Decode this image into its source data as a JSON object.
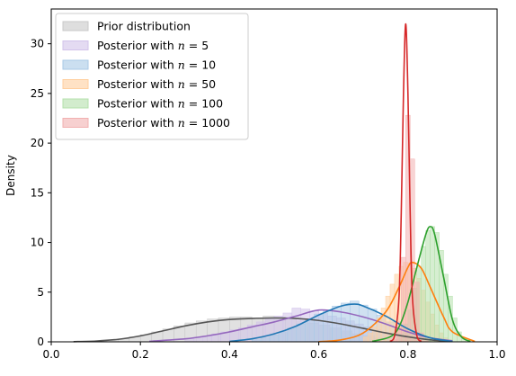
{
  "chart_data": {
    "type": "histogram-kde",
    "title": "",
    "xlabel": "",
    "ylabel": "Density",
    "xlim": [
      0.0,
      1.0
    ],
    "ylim": [
      0,
      33.5
    ],
    "xticks": [
      0.0,
      0.2,
      0.4,
      0.6,
      0.8,
      1.0
    ],
    "xtick_labels": [
      "0.0",
      "0.2",
      "0.4",
      "0.6",
      "0.8",
      "1.0"
    ],
    "yticks": [
      0,
      5,
      10,
      15,
      20,
      25,
      30
    ],
    "ytick_labels": [
      "0",
      "5",
      "10",
      "15",
      "20",
      "25",
      "30"
    ],
    "grid": false,
    "legend_position": "top-left",
    "series": [
      {
        "name": "Prior distribution",
        "legend_prefix": "Prior distribution",
        "legend_n": "",
        "fill": "#c8c8c8",
        "line": "#555555",
        "kde": {
          "x": [
            0.05,
            0.1,
            0.15,
            0.2,
            0.25,
            0.3,
            0.35,
            0.4,
            0.45,
            0.5,
            0.55,
            0.6,
            0.65,
            0.7,
            0.75,
            0.8,
            0.85,
            0.9
          ],
          "y": [
            0.02,
            0.08,
            0.25,
            0.6,
            1.1,
            1.6,
            2.0,
            2.25,
            2.35,
            2.4,
            2.35,
            2.15,
            1.8,
            1.35,
            0.9,
            0.5,
            0.2,
            0.05
          ]
        },
        "hist": {
          "start": 0.1,
          "width": 0.025,
          "values": [
            0.1,
            0.2,
            0.3,
            0.5,
            0.7,
            1.0,
            1.3,
            1.6,
            1.9,
            2.1,
            2.3,
            2.4,
            2.5,
            2.5,
            2.4,
            2.6,
            2.5,
            2.3,
            2.1,
            1.9,
            1.7,
            1.4,
            1.1,
            0.8,
            0.6,
            0.4,
            0.3,
            0.2,
            0.1,
            0.05
          ]
        }
      },
      {
        "name": "Posterior with n = 5",
        "legend_prefix": "Posterior with ",
        "legend_n": "5",
        "fill": "#d2c3ea",
        "line": "#9467bd",
        "kde": {
          "x": [
            0.22,
            0.3,
            0.35,
            0.4,
            0.45,
            0.5,
            0.55,
            0.6,
            0.65,
            0.7,
            0.75,
            0.8,
            0.85,
            0.9
          ],
          "y": [
            0.05,
            0.3,
            0.6,
            1.0,
            1.5,
            2.0,
            2.6,
            3.2,
            3.0,
            2.5,
            1.8,
            1.0,
            0.4,
            0.1
          ]
        },
        "hist": {
          "start": 0.3,
          "width": 0.02,
          "values": [
            0.3,
            0.4,
            0.6,
            0.8,
            1.0,
            1.2,
            1.4,
            1.7,
            2.0,
            2.3,
            2.6,
            2.9,
            3.4,
            3.3,
            3.1,
            2.9,
            2.6,
            2.4,
            2.1,
            1.8,
            1.5,
            1.2,
            0.9,
            0.6,
            0.4,
            0.2
          ]
        }
      },
      {
        "name": "Posterior with n = 10",
        "legend_prefix": "Posterior with ",
        "legend_n": "10",
        "fill": "#a9c9e6",
        "line": "#1f77b4",
        "kde": {
          "x": [
            0.4,
            0.45,
            0.5,
            0.55,
            0.6,
            0.65,
            0.68,
            0.7,
            0.75,
            0.8,
            0.85,
            0.9
          ],
          "y": [
            0.05,
            0.3,
            0.8,
            1.6,
            2.7,
            3.6,
            3.8,
            3.6,
            2.6,
            1.3,
            0.4,
            0.05
          ]
        },
        "hist": {
          "start": 0.45,
          "width": 0.02,
          "values": [
            0.2,
            0.4,
            0.7,
            1.0,
            1.4,
            1.8,
            2.3,
            2.8,
            3.2,
            3.6,
            3.9,
            4.1,
            3.7,
            3.3,
            2.7,
            2.0,
            1.4,
            0.9,
            0.5,
            0.2
          ]
        }
      },
      {
        "name": "Posterior with n = 50",
        "legend_prefix": "Posterior with ",
        "legend_n": "50",
        "fill": "#ffcf9f",
        "line": "#ff7f0e",
        "kde": {
          "x": [
            0.6,
            0.65,
            0.7,
            0.75,
            0.78,
            0.8,
            0.81,
            0.83,
            0.85,
            0.88,
            0.9,
            0.95
          ],
          "y": [
            0.02,
            0.2,
            0.9,
            3.0,
            5.5,
            7.5,
            8.0,
            7.4,
            5.5,
            2.5,
            1.0,
            0.05
          ]
        },
        "hist": {
          "start": 0.7,
          "width": 0.01,
          "values": [
            0.5,
            0.9,
            1.5,
            2.4,
            3.4,
            4.6,
            5.8,
            6.8,
            7.6,
            8.0,
            7.9,
            7.4,
            6.4,
            5.2,
            4.0,
            2.8,
            1.7,
            0.9,
            0.4,
            0.2
          ]
        }
      },
      {
        "name": "Posterior with n = 100",
        "legend_prefix": "Posterior with ",
        "legend_n": "100",
        "fill": "#b4e0ac",
        "line": "#2ca02c",
        "kde": {
          "x": [
            0.72,
            0.76,
            0.78,
            0.8,
            0.82,
            0.84,
            0.85,
            0.86,
            0.88,
            0.9,
            0.92,
            0.94
          ],
          "y": [
            0.05,
            0.5,
            1.5,
            4.0,
            7.5,
            10.8,
            11.6,
            10.8,
            6.5,
            2.2,
            0.5,
            0.05
          ]
        },
        "hist": {
          "start": 0.78,
          "width": 0.01,
          "values": [
            0.8,
            1.8,
            3.2,
            5.4,
            7.6,
            9.6,
            11.2,
            11.6,
            11.0,
            9.2,
            6.8,
            4.6,
            2.4,
            1.0,
            0.4
          ]
        }
      },
      {
        "name": "Posterior with n = 1000",
        "legend_prefix": "Posterior with ",
        "legend_n": "1000",
        "fill": "#f2b0b0",
        "line": "#d62728",
        "kde": {
          "x": [
            0.76,
            0.77,
            0.78,
            0.785,
            0.79,
            0.795,
            0.8,
            0.805,
            0.81,
            0.82,
            0.83
          ],
          "y": [
            0.05,
            0.6,
            4.5,
            13.0,
            25.0,
            32.0,
            25.0,
            13.0,
            4.5,
            0.6,
            0.05
          ]
        },
        "hist": {
          "start": 0.765,
          "width": 0.01,
          "values": [
            0.2,
            2.0,
            8.5,
            22.8,
            18.4,
            6.0,
            0.9,
            0.1
          ]
        }
      }
    ]
  }
}
